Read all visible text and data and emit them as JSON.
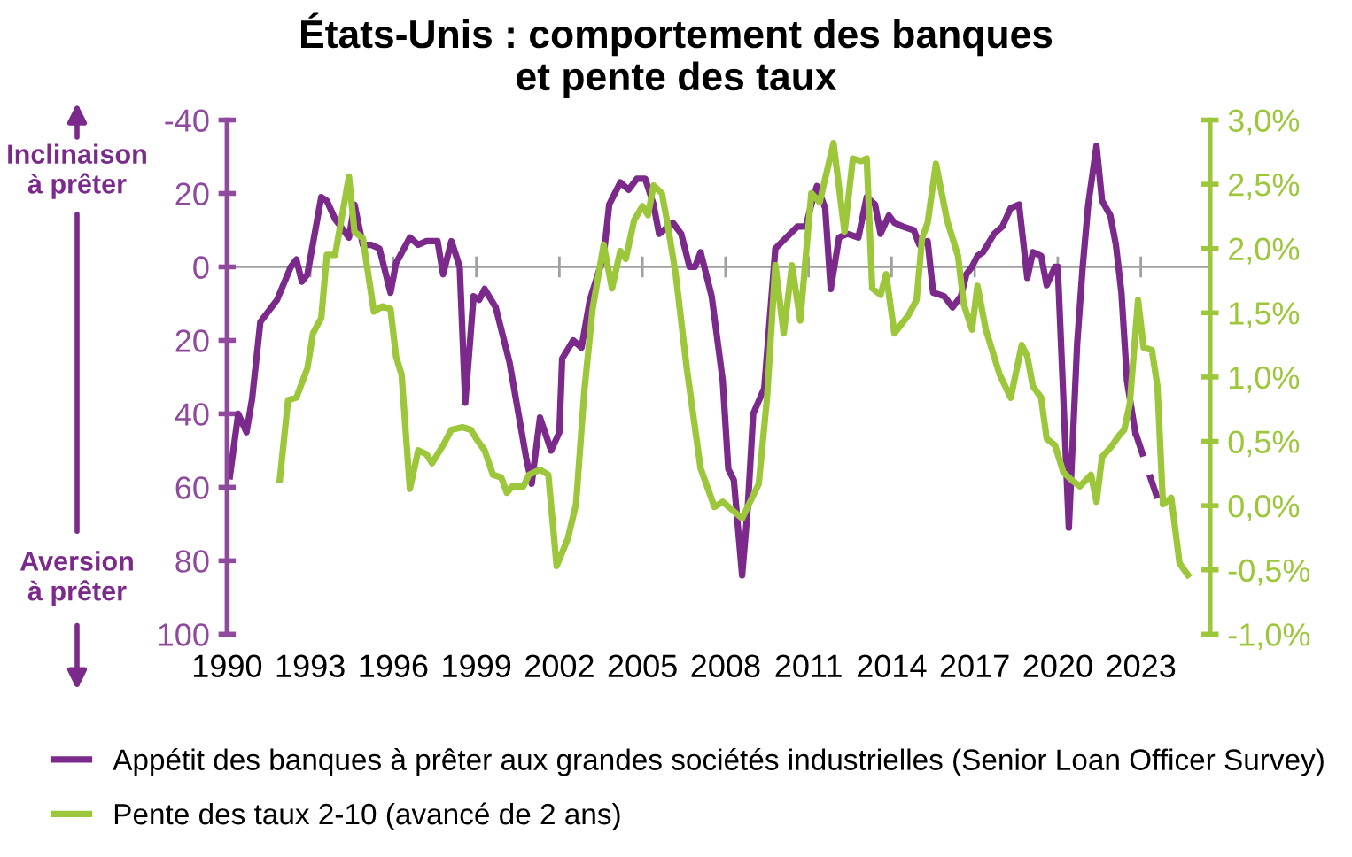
{
  "chart_data": {
    "type": "line",
    "title": "États-Unis : comportement des banques\net pente des taux",
    "xlim": [
      1990,
      2025.5
    ],
    "xticks": [
      1990,
      1993,
      1996,
      1999,
      2002,
      2005,
      2008,
      2011,
      2014,
      2017,
      2020,
      2023
    ],
    "ylim": [
      100,
      -40
    ],
    "yticks": [
      {
        "value": -40,
        "label": "-40"
      },
      {
        "value": -20,
        "label": "20"
      },
      0,
      20,
      40,
      60,
      80,
      100
    ],
    "y2lim": [
      -1.0,
      3.0
    ],
    "y2ticks": [
      {
        "value": -1.0,
        "label": "-1,0%"
      },
      {
        "value": -0.5,
        "label": "-0,5%"
      },
      {
        "value": 0.0,
        "label": "0,0%"
      },
      {
        "value": 0.5,
        "label": "0,5%"
      },
      {
        "value": 1.0,
        "label": "1,0%"
      },
      {
        "value": 1.5,
        "label": "1,5%"
      },
      {
        "value": 2.0,
        "label": "2,0%"
      },
      {
        "value": 2.5,
        "label": "2,5%"
      },
      {
        "value": 3.0,
        "label": "3,0%"
      }
    ],
    "grid": false,
    "legend": "bottom",
    "line_style": "solid",
    "marker": "none",
    "ref_lines": [
      {
        "axis": "y",
        "value": 0,
        "color": "#a0a0a0"
      }
    ],
    "annotations": [
      "Inclinaison\nà prêter",
      "Aversion\nà prêter"
    ],
    "series": [
      {
        "name": "Appétit des banques à prêter aux grandes sociétés industrielles (Senior Loan Officer Survey)",
        "color": "#7b2a8c",
        "x": [
          1990.1,
          1990.4,
          1990.7,
          1990.9,
          1991.2,
          1991.8,
          1992.3,
          1992.5,
          1992.7,
          1992.9,
          1993.4,
          1993.6,
          1993.9,
          1994.4,
          1994.6,
          1994.9,
          1995.2,
          1995.5,
          1995.9,
          1996.1,
          1996.6,
          1996.9,
          1997.2,
          1997.6,
          1997.8,
          1998.1,
          1998.4,
          1998.6,
          1998.9,
          1999.1,
          1999.3,
          1999.7,
          2000.2,
          2000.8,
          2001.0,
          2001.3,
          2001.7,
          2002.0,
          2002.1,
          2002.5,
          2002.8,
          2003.1,
          2003.6,
          2003.8,
          2004.2,
          2004.5,
          2004.8,
          2005.1,
          2005.4,
          2005.6,
          2006.1,
          2006.4,
          2006.7,
          2006.9,
          2007.1,
          2007.5,
          2007.9,
          2008.1,
          2008.3,
          2008.6,
          2008.8,
          2009.0,
          2009.4,
          2009.8,
          2010.2,
          2010.6,
          2010.9,
          2011.1,
          2011.3,
          2011.6,
          2011.8,
          2012.1,
          2012.4,
          2012.8,
          2013.1,
          2013.4,
          2013.6,
          2013.9,
          2014.1,
          2014.4,
          2014.8,
          2015.0,
          2015.3,
          2015.5,
          2015.9,
          2016.2,
          2016.5,
          2016.7,
          2016.9,
          2017.1,
          2017.3,
          2017.7,
          2018.0,
          2018.3,
          2018.6,
          2018.9,
          2019.1,
          2019.4,
          2019.6,
          2019.9,
          2020.0,
          2020.4,
          2020.7,
          2020.9,
          2021.1,
          2021.4,
          2021.6,
          2021.9,
          2022.1,
          2022.3,
          2022.5,
          2022.8
        ],
        "values": [
          57,
          40,
          45,
          36,
          15,
          9,
          0,
          -2,
          4,
          2,
          -19,
          -18,
          -13,
          -8,
          -17,
          -6,
          -6,
          -5,
          7,
          -1,
          -8,
          -6,
          -7,
          -7,
          2,
          -7,
          0,
          37,
          8,
          9,
          6,
          11,
          26,
          52,
          59,
          41,
          50,
          45,
          25,
          20,
          22,
          9,
          -3,
          -17,
          -23,
          -21,
          -24,
          -24,
          -17,
          -9,
          -12,
          -9,
          0,
          0,
          -4,
          8,
          31,
          55,
          58,
          84,
          66,
          40,
          33,
          -5,
          -8,
          -11,
          -11,
          -17,
          -22,
          -16,
          6,
          -8,
          -9,
          -8,
          -19,
          -17,
          -9,
          -14,
          -12,
          -11,
          -10,
          -6,
          -7,
          7,
          8,
          11,
          8,
          2,
          0,
          -3,
          -4,
          -9,
          -11,
          -16,
          -17,
          3,
          -4,
          -3,
          5,
          0,
          0,
          71,
          21,
          0,
          -17,
          -33,
          -18,
          -14,
          -6,
          7,
          31,
          45
        ]
      },
      {
        "color": "#7b2a8c",
        "line_style": "dashed",
        "x": [
          2022.8,
          2023.6
        ],
        "values": [
          45,
          63
        ]
      },
      {
        "name": "Pente des taux 2-10 (avancé de 2 ans)",
        "color": "#9dc73a",
        "axis": "y2",
        "x": [
          1991.9,
          1992.2,
          1992.5,
          1992.9,
          1993.1,
          1993.4,
          1993.6,
          1993.9,
          1994.4,
          1994.6,
          1994.9,
          1995.3,
          1995.6,
          1995.9,
          1996.1,
          1996.3,
          1996.6,
          1996.9,
          1997.2,
          1997.4,
          1997.8,
          1998.1,
          1998.5,
          1998.8,
          1999.0,
          1999.3,
          1999.6,
          1999.9,
          2000.1,
          2000.3,
          2000.7,
          2000.9,
          2001.3,
          2001.6,
          2001.9,
          2002.3,
          2002.6,
          2002.9,
          2003.2,
          2003.6,
          2003.9,
          2004.2,
          2004.4,
          2004.7,
          2005.0,
          2005.2,
          2005.4,
          2005.7,
          2005.9,
          2006.2,
          2006.6,
          2007.1,
          2007.6,
          2007.9,
          2008.6,
          2009.2,
          2009.5,
          2009.8,
          2010.1,
          2010.4,
          2010.7,
          2010.9,
          2011.1,
          2011.4,
          2011.9,
          2012.3,
          2012.6,
          2012.9,
          2013.1,
          2013.3,
          2013.6,
          2013.8,
          2014.1,
          2014.6,
          2014.9,
          2015.1,
          2015.3,
          2015.6,
          2016.0,
          2016.4,
          2016.6,
          2016.9,
          2017.1,
          2017.4,
          2017.9,
          2018.3,
          2018.7,
          2018.9,
          2019.1,
          2019.4,
          2019.6,
          2019.9,
          2020.2,
          2020.5,
          2020.8,
          2021.2,
          2021.4,
          2021.6,
          2021.9,
          2022.2,
          2022.4,
          2022.6,
          2022.9,
          2023.1,
          2023.4,
          2023.6,
          2023.8,
          2024.1,
          2024.4,
          2024.7
        ],
        "values": [
          0.2,
          0.82,
          0.84,
          1.07,
          1.34,
          1.46,
          1.95,
          1.95,
          2.56,
          2.13,
          2.08,
          1.51,
          1.55,
          1.53,
          1.16,
          1.02,
          0.13,
          0.43,
          0.4,
          0.33,
          0.47,
          0.59,
          0.61,
          0.59,
          0.52,
          0.43,
          0.24,
          0.22,
          0.1,
          0.15,
          0.15,
          0.24,
          0.28,
          0.24,
          -0.47,
          -0.26,
          0.01,
          0.89,
          1.53,
          2.03,
          1.69,
          1.98,
          1.92,
          2.22,
          2.33,
          2.26,
          2.49,
          2.43,
          2.2,
          1.8,
          1.07,
          0.29,
          -0.01,
          0.03,
          -0.1,
          0.17,
          0.84,
          1.87,
          1.34,
          1.87,
          1.44,
          1.94,
          2.43,
          2.36,
          2.82,
          2.13,
          2.7,
          2.68,
          2.7,
          1.69,
          1.64,
          1.8,
          1.34,
          1.48,
          1.6,
          2.08,
          2.2,
          2.66,
          2.22,
          1.94,
          1.57,
          1.37,
          1.71,
          1.37,
          1.02,
          0.84,
          1.25,
          1.16,
          0.93,
          0.84,
          0.52,
          0.47,
          0.26,
          0.2,
          0.15,
          0.24,
          0.03,
          0.38,
          0.45,
          0.54,
          0.59,
          0.79,
          1.6,
          1.23,
          1.21,
          0.93,
          0.01,
          0.06,
          -0.45,
          -0.54
        ]
      }
    ]
  }
}
